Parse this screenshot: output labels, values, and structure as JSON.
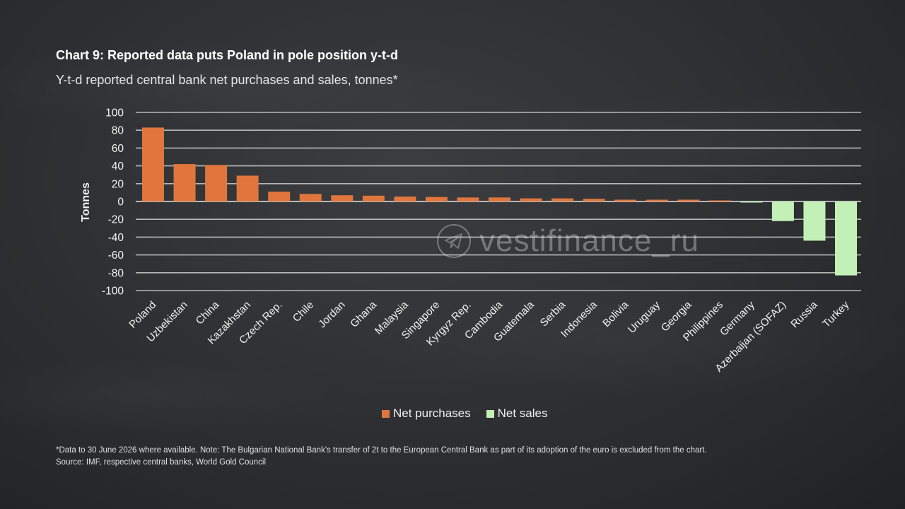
{
  "title": "Chart 9: Reported data puts Poland in pole position y-t-d",
  "subtitle": "Y-t-d reported central bank net purchases and sales, tonnes*",
  "footnote": {
    "line1": "*Data to 30 June 2026 where available. Note: The Bulgarian National Bank's transfer of 2t to the European Central Bank as part of its adoption of the euro is excluded from the chart.",
    "line2": "Source: IMF, respective central banks, World Gold Council"
  },
  "watermark": {
    "text": "vestifinance_ru",
    "icon": "telegram-plane-icon"
  },
  "colors": {
    "net_purchases": "#e0763d",
    "net_sales": "#c3f0b6",
    "grid": "#cfcfcf"
  },
  "chart_data": {
    "type": "bar",
    "title": "Chart 9: Reported data puts Poland in pole position y-t-d",
    "subtitle": "Y-t-d reported central bank net purchases and sales, tonnes*",
    "xlabel": "",
    "ylabel": "Tonnes",
    "ylim": [
      -100,
      100
    ],
    "yticks": [
      100,
      80,
      60,
      40,
      20,
      0,
      -20,
      -40,
      -60,
      -80,
      -100
    ],
    "grid": true,
    "legend_position": "bottom",
    "categories": [
      "Poland",
      "Uzbekistan",
      "China",
      "Kazakhstan",
      "Czech Rep.",
      "Chile",
      "Jordan",
      "Ghana",
      "Malaysia",
      "Singapore",
      "Kyrgyz Rep.",
      "Cambodia",
      "Guatemala",
      "Serbia",
      "Indonesia",
      "Bolivia",
      "Uruguay",
      "Georgia",
      "Philippines",
      "Germany",
      "Azerbaijan (SOFAZ)",
      "Russia",
      "Turkey"
    ],
    "series": [
      {
        "name": "Net purchases",
        "values": [
          83,
          42,
          41,
          29,
          11,
          8.5,
          7,
          6.5,
          5.5,
          5,
          4.5,
          4.5,
          3.5,
          3.5,
          3,
          2,
          2,
          2,
          1,
          null,
          null,
          null,
          null
        ]
      },
      {
        "name": "Net sales",
        "values": [
          null,
          null,
          null,
          null,
          null,
          null,
          null,
          null,
          null,
          null,
          null,
          null,
          null,
          null,
          null,
          null,
          null,
          null,
          null,
          -1,
          -22,
          -44,
          -83
        ]
      }
    ]
  }
}
